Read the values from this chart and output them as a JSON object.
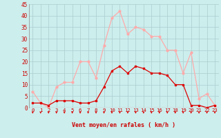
{
  "hours": [
    0,
    1,
    2,
    3,
    4,
    5,
    6,
    7,
    8,
    9,
    10,
    11,
    12,
    13,
    14,
    15,
    16,
    17,
    18,
    19,
    20,
    21,
    22,
    23
  ],
  "wind_avg": [
    2,
    2,
    1,
    3,
    3,
    3,
    2,
    2,
    3,
    9,
    16,
    18,
    15,
    18,
    17,
    15,
    15,
    14,
    10,
    10,
    1,
    1,
    0,
    1
  ],
  "wind_gust": [
    7,
    2,
    0,
    9,
    11,
    11,
    20,
    20,
    13,
    27,
    39,
    42,
    32,
    35,
    34,
    31,
    31,
    25,
    25,
    15,
    24,
    4,
    6,
    1
  ],
  "xlabel": "Vent moyen/en rafales ( km/h )",
  "ylim": [
    0,
    45
  ],
  "xlim": [
    0,
    23
  ],
  "yticks": [
    0,
    5,
    10,
    15,
    20,
    25,
    30,
    35,
    40,
    45
  ],
  "xticks": [
    0,
    1,
    2,
    3,
    4,
    5,
    6,
    7,
    8,
    9,
    10,
    11,
    12,
    13,
    14,
    15,
    16,
    17,
    18,
    19,
    20,
    21,
    22,
    23
  ],
  "bg_color": "#cceeed",
  "grid_color": "#aacccc",
  "line_avg_color": "#dd0000",
  "line_gust_color": "#ffaaaa",
  "tick_label_color": "#cc0000",
  "xlabel_color": "#cc0000"
}
